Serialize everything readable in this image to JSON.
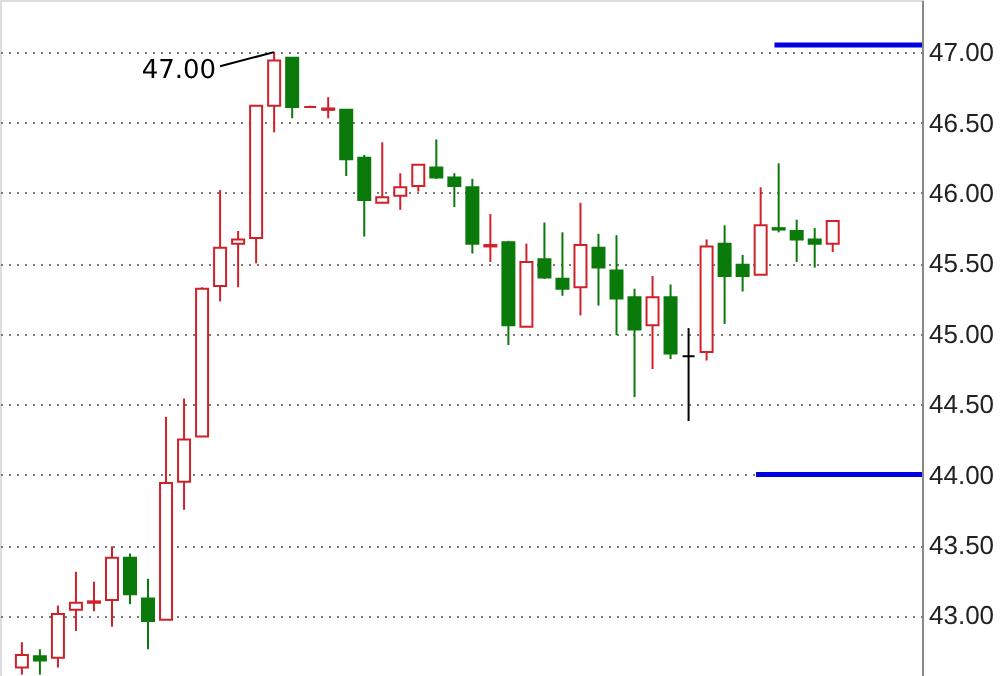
{
  "chart_data": {
    "type": "candlestick",
    "categories": [
      null,
      null,
      null,
      null,
      null,
      null,
      null,
      null,
      null,
      null,
      null,
      null,
      null,
      null,
      null,
      null,
      null,
      null,
      null,
      null,
      null,
      null,
      null,
      null,
      null,
      null,
      null,
      null,
      null,
      null,
      null,
      null,
      null,
      null,
      null,
      null,
      null,
      null,
      null,
      null,
      null,
      null,
      null,
      null,
      null,
      null
    ],
    "ohlc": [
      [
        42.63,
        42.81,
        42.58,
        42.72
      ],
      [
        42.71,
        42.76,
        42.58,
        42.68
      ],
      [
        42.7,
        43.07,
        42.63,
        43.01
      ],
      [
        43.04,
        43.31,
        42.89,
        43.09
      ],
      [
        43.09,
        43.24,
        43.03,
        43.1
      ],
      [
        43.11,
        43.49,
        42.92,
        43.41
      ],
      [
        43.41,
        43.44,
        43.08,
        43.15
      ],
      [
        43.12,
        43.26,
        42.76,
        42.96
      ],
      [
        42.97,
        44.41,
        42.97,
        43.94
      ],
      [
        43.95,
        44.54,
        43.75,
        44.25
      ],
      [
        44.27,
        45.33,
        44.27,
        45.32
      ],
      [
        45.34,
        46.02,
        45.23,
        45.61
      ],
      [
        45.64,
        45.73,
        45.33,
        45.67
      ],
      [
        45.68,
        46.62,
        45.5,
        46.62
      ],
      [
        46.62,
        47.0,
        46.43,
        46.94
      ],
      [
        46.96,
        46.96,
        46.53,
        46.61
      ],
      [
        46.61,
        46.62,
        46.61,
        46.61
      ],
      [
        46.59,
        46.68,
        46.53,
        46.6
      ],
      [
        46.59,
        46.59,
        46.12,
        46.24
      ],
      [
        46.25,
        46.27,
        45.69,
        45.95
      ],
      [
        45.93,
        46.36,
        45.93,
        45.97
      ],
      [
        45.98,
        46.14,
        45.88,
        46.04
      ],
      [
        46.05,
        46.2,
        46.01,
        46.2
      ],
      [
        46.18,
        46.38,
        46.1,
        46.11
      ],
      [
        46.11,
        46.14,
        45.9,
        46.05
      ],
      [
        46.04,
        46.1,
        45.57,
        45.64
      ],
      [
        45.62,
        45.85,
        45.51,
        45.63
      ],
      [
        45.65,
        45.66,
        44.92,
        45.06
      ],
      [
        45.05,
        45.64,
        45.05,
        45.51
      ],
      [
        45.53,
        45.79,
        45.39,
        45.4
      ],
      [
        45.39,
        45.72,
        45.27,
        45.32
      ],
      [
        45.33,
        45.93,
        45.13,
        45.63
      ],
      [
        45.61,
        45.71,
        45.2,
        45.47
      ],
      [
        45.45,
        45.7,
        44.99,
        45.25
      ],
      [
        45.26,
        45.32,
        44.55,
        45.03
      ],
      [
        45.06,
        45.41,
        44.75,
        45.26
      ],
      [
        45.26,
        45.35,
        44.82,
        44.86
      ],
      [
        44.84,
        45.04,
        44.38,
        44.84
      ],
      [
        44.87,
        45.67,
        44.81,
        45.62
      ],
      [
        45.64,
        45.77,
        45.07,
        45.41
      ],
      [
        45.49,
        45.56,
        45.3,
        45.41
      ],
      [
        45.42,
        46.04,
        45.42,
        45.77
      ],
      [
        45.75,
        46.21,
        45.72,
        45.74
      ],
      [
        45.73,
        45.81,
        45.51,
        45.67
      ],
      [
        45.67,
        45.75,
        45.47,
        45.64
      ],
      [
        45.64,
        45.8,
        45.58,
        45.8
      ]
    ],
    "colors": [
      "#d0202a",
      "#0a7a0a",
      "#d0202a",
      "#d0202a",
      "#d0202a",
      "#d0202a",
      "#0a7a0a",
      "#0a7a0a",
      "#d0202a",
      "#d0202a",
      "#d0202a",
      "#d0202a",
      "#d0202a",
      "#d0202a",
      "#d0202a",
      "#0a7a0a",
      "#d0202a",
      "#d0202a",
      "#0a7a0a",
      "#0a7a0a",
      "#d0202a",
      "#d0202a",
      "#d0202a",
      "#0a7a0a",
      "#0a7a0a",
      "#0a7a0a",
      "#d0202a",
      "#0a7a0a",
      "#d0202a",
      "#0a7a0a",
      "#0a7a0a",
      "#d0202a",
      "#0a7a0a",
      "#0a7a0a",
      "#0a7a0a",
      "#d0202a",
      "#0a7a0a",
      "#000000",
      "#d0202a",
      "#0a7a0a",
      "#0a7a0a",
      "#d0202a",
      "#0a7a0a",
      "#0a7a0a",
      "#0a7a0a",
      "#d0202a"
    ],
    "ylim": [
      42.57,
      47.37
    ],
    "yticks": [
      {
        "value": 43,
        "label": "43.00"
      },
      {
        "value": 43.5,
        "label": "43.50"
      },
      {
        "value": 44,
        "label": "44.00"
      },
      {
        "value": 44.5,
        "label": "44.50"
      },
      {
        "value": 45,
        "label": "45.00"
      },
      {
        "value": 45.5,
        "label": "45.50"
      },
      {
        "value": 46,
        "label": "46.00"
      },
      {
        "value": 46.5,
        "label": "46.50"
      },
      {
        "value": 47,
        "label": "47.00"
      }
    ],
    "ref_lines": [
      {
        "axis": "y",
        "value": 47.05,
        "color": "#0000e0"
      },
      {
        "axis": "y",
        "value": 44.0,
        "color": "#0000e0"
      }
    ],
    "annotations": [
      "47.00"
    ],
    "grid": "y",
    "tick_labels": "y"
  }
}
